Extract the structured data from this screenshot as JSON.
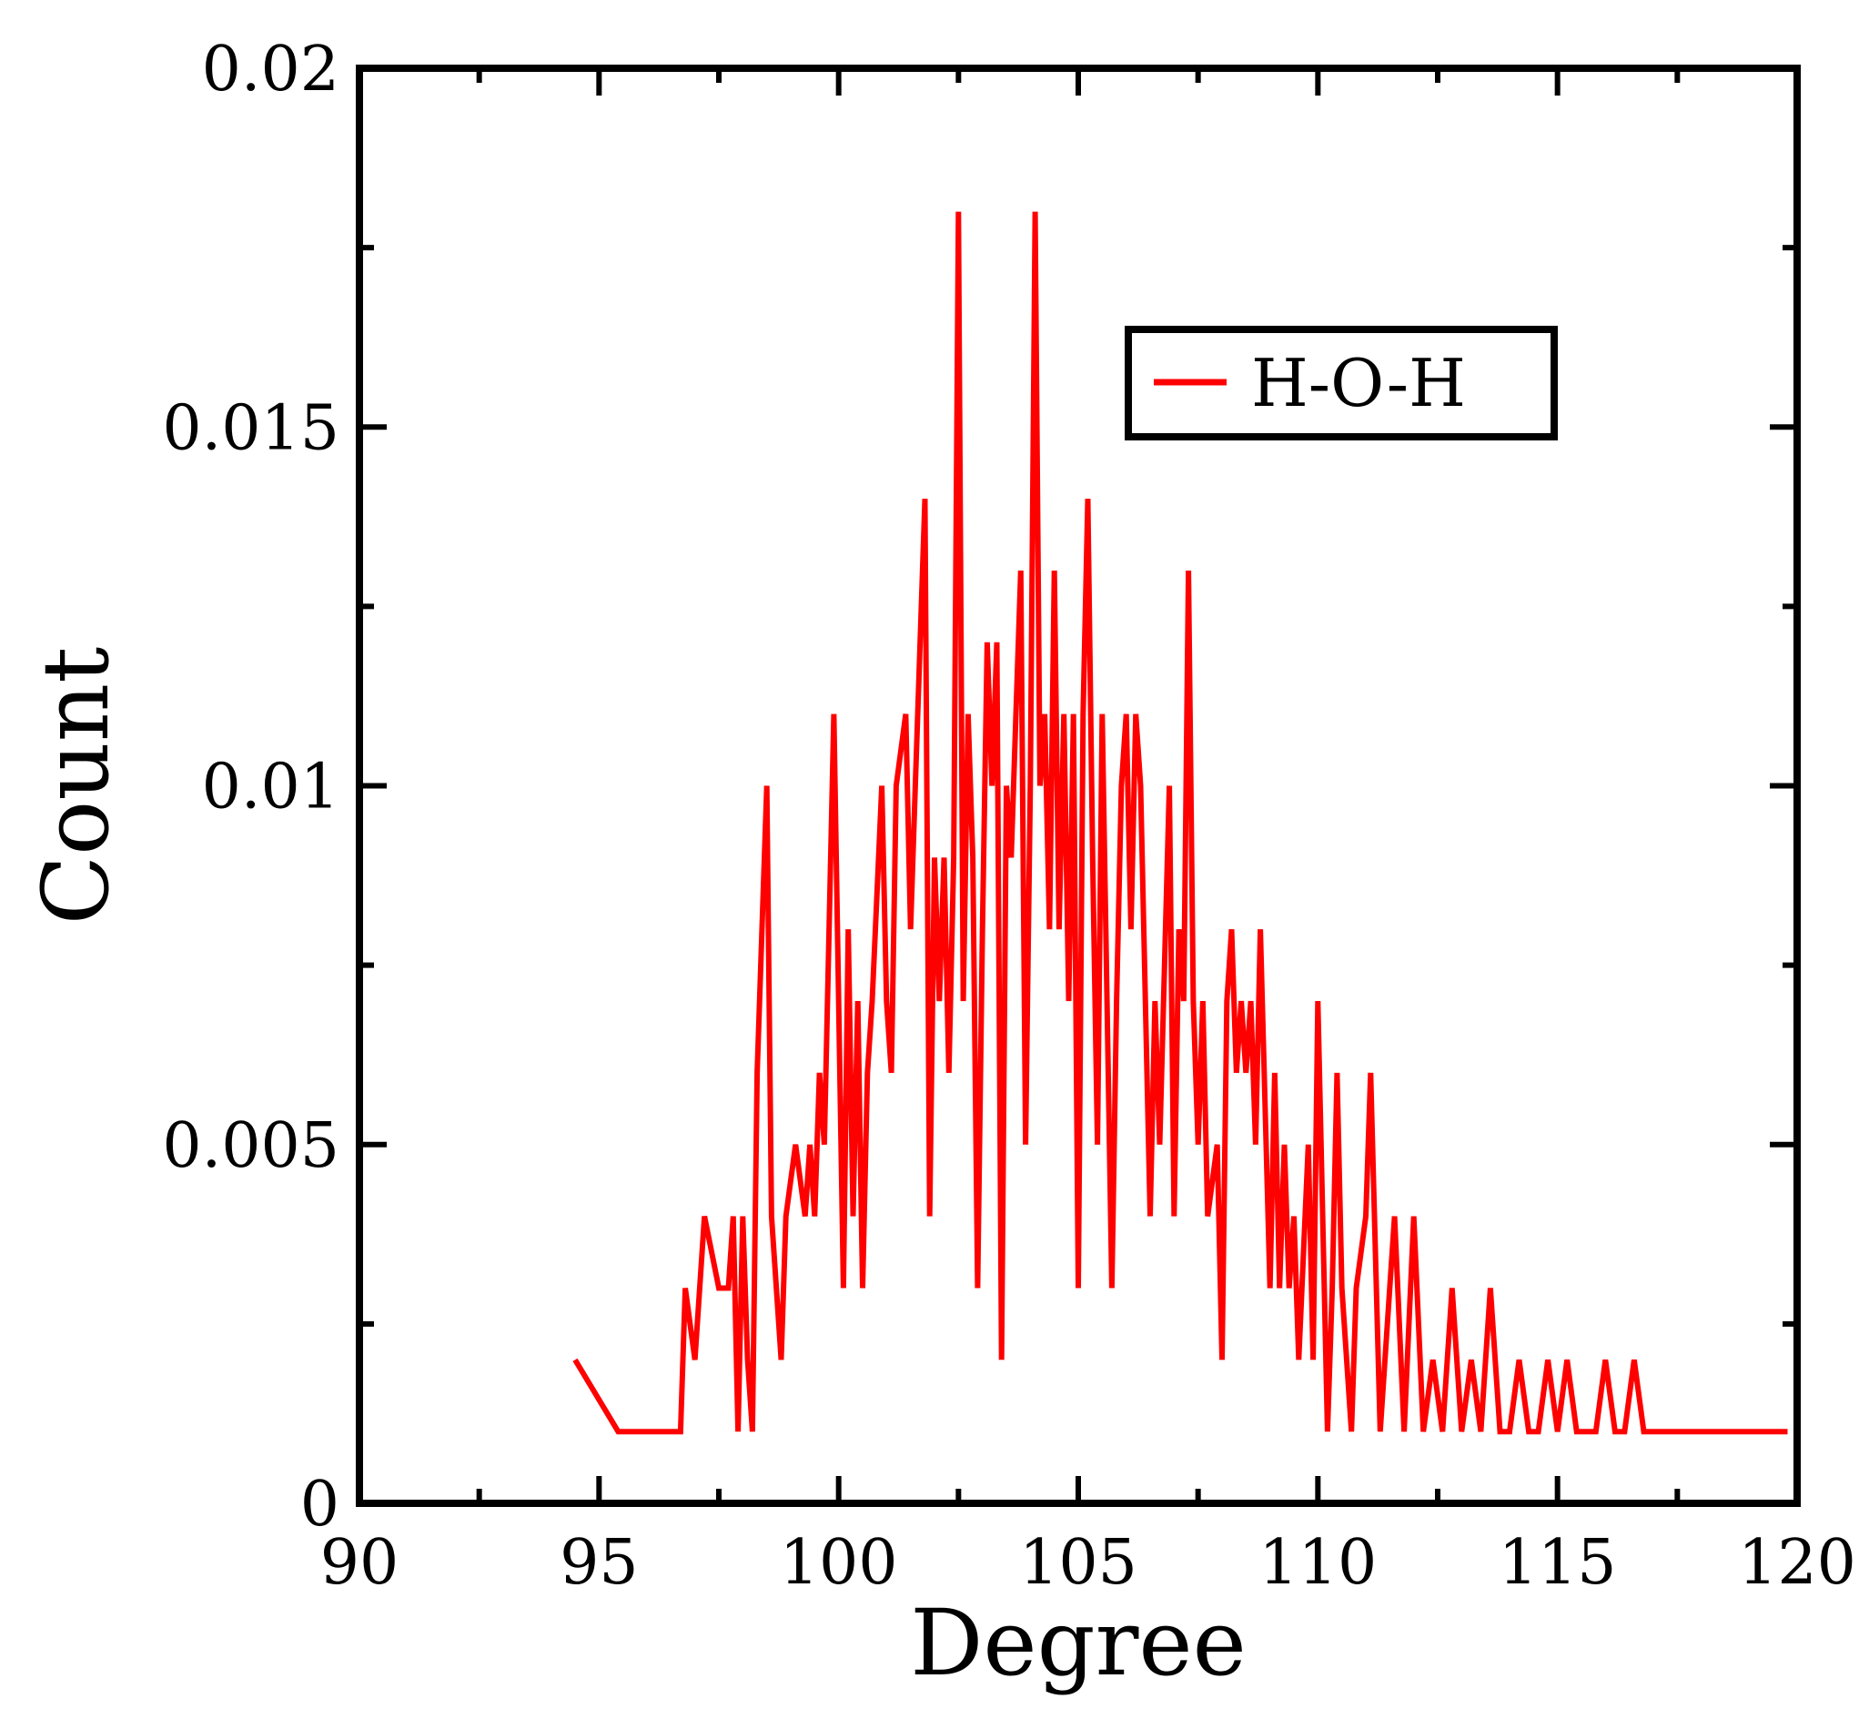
{
  "chart_data": {
    "type": "line",
    "title": "",
    "xlabel": "Degree",
    "ylabel": "Count",
    "xlim": [
      90,
      120
    ],
    "ylim": [
      0,
      0.02
    ],
    "x_ticks": [
      90,
      95,
      100,
      105,
      110,
      115,
      120
    ],
    "x_tick_labels": [
      "90",
      "95",
      "100",
      "105",
      "110",
      "115",
      "120"
    ],
    "y_ticks": [
      0,
      0.005,
      0.01,
      0.015,
      0.02
    ],
    "y_tick_labels": [
      "0",
      "0.005",
      "0.01",
      "0.015",
      "0.02"
    ],
    "grid": false,
    "legend": {
      "position": "top-right",
      "entries": [
        "H-O-H"
      ]
    },
    "colors": {
      "series": "#ff0000",
      "axes": "#000000"
    },
    "series": [
      {
        "name": "H-O-H",
        "points": [
          [
            94.5,
            0.002
          ],
          [
            95.4,
            0.001
          ],
          [
            96.7,
            0.001
          ],
          [
            96.8,
            0.003
          ],
          [
            97.0,
            0.002
          ],
          [
            97.2,
            0.004
          ],
          [
            97.5,
            0.003
          ],
          [
            97.7,
            0.003
          ],
          [
            97.8,
            0.004
          ],
          [
            97.9,
            0.001
          ],
          [
            98.0,
            0.004
          ],
          [
            98.1,
            0.002
          ],
          [
            98.2,
            0.001
          ],
          [
            98.3,
            0.006
          ],
          [
            98.5,
            0.01
          ],
          [
            98.6,
            0.004
          ],
          [
            98.8,
            0.002
          ],
          [
            98.9,
            0.004
          ],
          [
            99.1,
            0.005
          ],
          [
            99.3,
            0.004
          ],
          [
            99.4,
            0.005
          ],
          [
            99.5,
            0.004
          ],
          [
            99.6,
            0.006
          ],
          [
            99.7,
            0.005
          ],
          [
            99.9,
            0.011
          ],
          [
            100.1,
            0.003
          ],
          [
            100.2,
            0.008
          ],
          [
            100.3,
            0.004
          ],
          [
            100.4,
            0.007
          ],
          [
            100.5,
            0.003
          ],
          [
            100.6,
            0.006
          ],
          [
            100.7,
            0.007
          ],
          [
            100.9,
            0.01
          ],
          [
            101.0,
            0.007
          ],
          [
            101.1,
            0.006
          ],
          [
            101.2,
            0.01
          ],
          [
            101.4,
            0.011
          ],
          [
            101.5,
            0.008
          ],
          [
            101.6,
            0.01
          ],
          [
            101.8,
            0.014
          ],
          [
            101.9,
            0.004
          ],
          [
            102.0,
            0.009
          ],
          [
            102.1,
            0.007
          ],
          [
            102.2,
            0.009
          ],
          [
            102.3,
            0.006
          ],
          [
            102.4,
            0.009
          ],
          [
            102.5,
            0.018
          ],
          [
            102.6,
            0.007
          ],
          [
            102.7,
            0.011
          ],
          [
            102.8,
            0.009
          ],
          [
            102.9,
            0.003
          ],
          [
            103.0,
            0.008
          ],
          [
            103.1,
            0.012
          ],
          [
            103.2,
            0.01
          ],
          [
            103.3,
            0.012
          ],
          [
            103.4,
            0.002
          ],
          [
            103.5,
            0.01
          ],
          [
            103.6,
            0.009
          ],
          [
            103.7,
            0.011
          ],
          [
            103.8,
            0.013
          ],
          [
            103.9,
            0.005
          ],
          [
            104.0,
            0.01
          ],
          [
            104.1,
            0.018
          ],
          [
            104.2,
            0.01
          ],
          [
            104.3,
            0.011
          ],
          [
            104.4,
            0.008
          ],
          [
            104.5,
            0.013
          ],
          [
            104.6,
            0.008
          ],
          [
            104.7,
            0.011
          ],
          [
            104.8,
            0.007
          ],
          [
            104.9,
            0.011
          ],
          [
            105.0,
            0.003
          ],
          [
            105.1,
            0.011
          ],
          [
            105.2,
            0.014
          ],
          [
            105.3,
            0.009
          ],
          [
            105.4,
            0.005
          ],
          [
            105.5,
            0.011
          ],
          [
            105.7,
            0.003
          ],
          [
            105.8,
            0.007
          ],
          [
            105.9,
            0.01
          ],
          [
            106.0,
            0.011
          ],
          [
            106.1,
            0.008
          ],
          [
            106.2,
            0.011
          ],
          [
            106.3,
            0.01
          ],
          [
            106.5,
            0.004
          ],
          [
            106.6,
            0.007
          ],
          [
            106.7,
            0.005
          ],
          [
            106.9,
            0.01
          ],
          [
            107.0,
            0.004
          ],
          [
            107.1,
            0.008
          ],
          [
            107.2,
            0.007
          ],
          [
            107.3,
            0.013
          ],
          [
            107.4,
            0.007
          ],
          [
            107.5,
            0.005
          ],
          [
            107.6,
            0.007
          ],
          [
            107.7,
            0.004
          ],
          [
            107.9,
            0.005
          ],
          [
            108.0,
            0.002
          ],
          [
            108.1,
            0.007
          ],
          [
            108.2,
            0.008
          ],
          [
            108.3,
            0.006
          ],
          [
            108.4,
            0.007
          ],
          [
            108.5,
            0.006
          ],
          [
            108.6,
            0.007
          ],
          [
            108.7,
            0.005
          ],
          [
            108.8,
            0.008
          ],
          [
            109.0,
            0.003
          ],
          [
            109.1,
            0.006
          ],
          [
            109.2,
            0.003
          ],
          [
            109.3,
            0.005
          ],
          [
            109.4,
            0.003
          ],
          [
            109.5,
            0.004
          ],
          [
            109.6,
            0.002
          ],
          [
            109.8,
            0.005
          ],
          [
            109.9,
            0.002
          ],
          [
            110.0,
            0.007
          ],
          [
            110.1,
            0.004
          ],
          [
            110.2,
            0.001
          ],
          [
            110.3,
            0.003
          ],
          [
            110.4,
            0.006
          ],
          [
            110.5,
            0.003
          ],
          [
            110.7,
            0.001
          ],
          [
            110.8,
            0.003
          ],
          [
            111.0,
            0.004
          ],
          [
            111.1,
            0.006
          ],
          [
            111.3,
            0.001
          ],
          [
            111.5,
            0.003
          ],
          [
            111.6,
            0.004
          ],
          [
            111.8,
            0.001
          ],
          [
            112.0,
            0.004
          ],
          [
            112.2,
            0.001
          ],
          [
            112.4,
            0.002
          ],
          [
            112.6,
            0.001
          ],
          [
            112.8,
            0.003
          ],
          [
            113.0,
            0.001
          ],
          [
            113.2,
            0.002
          ],
          [
            113.4,
            0.001
          ],
          [
            113.6,
            0.003
          ],
          [
            113.8,
            0.001
          ],
          [
            114.0,
            0.001
          ],
          [
            114.2,
            0.002
          ],
          [
            114.4,
            0.001
          ],
          [
            114.6,
            0.001
          ],
          [
            114.8,
            0.002
          ],
          [
            115.0,
            0.001
          ],
          [
            115.2,
            0.002
          ],
          [
            115.4,
            0.001
          ],
          [
            115.6,
            0.001
          ],
          [
            115.8,
            0.001
          ],
          [
            116.0,
            0.002
          ],
          [
            116.2,
            0.001
          ],
          [
            116.4,
            0.001
          ],
          [
            116.6,
            0.002
          ],
          [
            116.8,
            0.001
          ],
          [
            117.0,
            0.001
          ],
          [
            117.2,
            0.001
          ],
          [
            117.4,
            0.001
          ],
          [
            117.6,
            0.001
          ],
          [
            117.8,
            0.001
          ],
          [
            118.0,
            0.001
          ],
          [
            118.2,
            0.001
          ],
          [
            118.4,
            0.001
          ],
          [
            118.6,
            0.001
          ],
          [
            118.8,
            0.001
          ],
          [
            119.0,
            0.001
          ],
          [
            119.2,
            0.001
          ],
          [
            119.4,
            0.001
          ],
          [
            119.6,
            0.001
          ],
          [
            119.8,
            0.001
          ]
        ]
      }
    ]
  }
}
